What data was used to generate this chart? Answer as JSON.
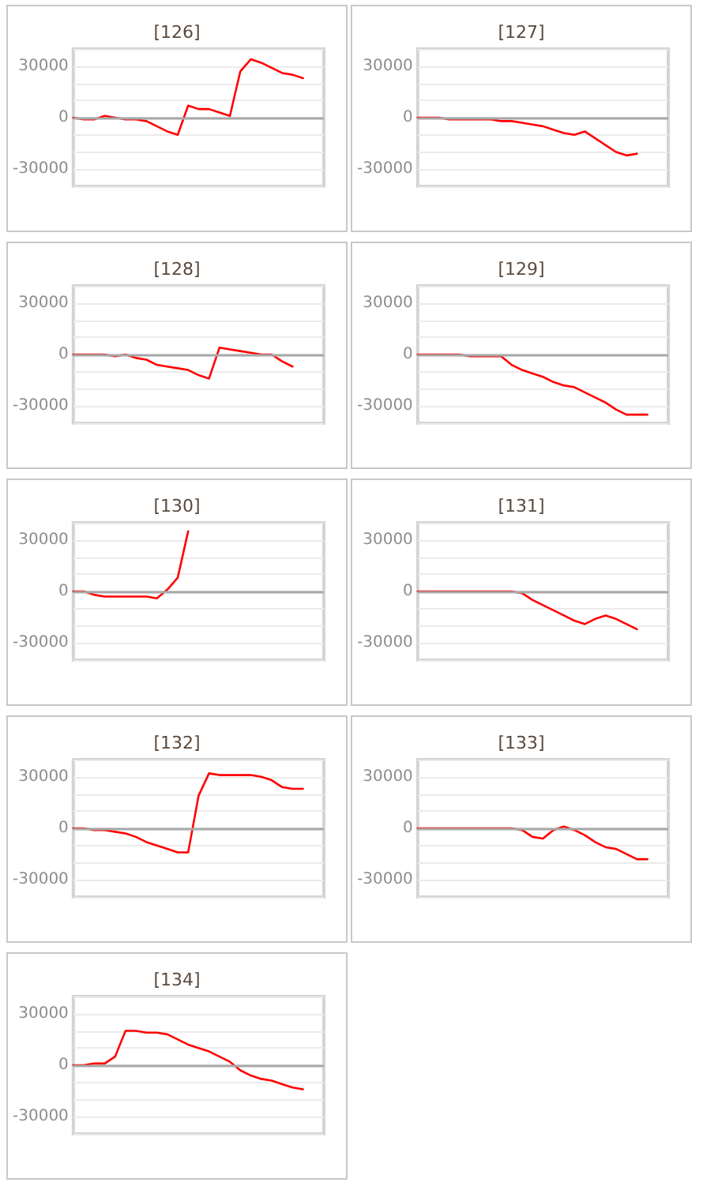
{
  "chart_data": [
    {
      "type": "line",
      "title": "[126]",
      "ref_lines": [
        {
          "axis": "y",
          "value": 0,
          "color": "#a8a8a8"
        }
      ],
      "categories": [
        null,
        null,
        null,
        null,
        null,
        null,
        null,
        null,
        null,
        null,
        null,
        null,
        null,
        null,
        null,
        null,
        null,
        null,
        null,
        null,
        null,
        null,
        null,
        null,
        null
      ],
      "series": [
        {
          "color": "#ff0000",
          "values": [
            0,
            -1000,
            -1000,
            1000,
            0,
            -1000,
            -1000,
            -2000,
            -5000,
            -8000,
            -10000,
            7000,
            5000,
            5000,
            3000,
            1000,
            27000,
            34000,
            32000,
            29000,
            26000,
            25000,
            23000,
            null,
            null
          ]
        }
      ],
      "ylim": [
        -40000,
        40000
      ],
      "yticks": [
        {
          "value": -30000,
          "label": "-30000"
        },
        {
          "value": -20000,
          "label": null
        },
        {
          "value": -10000,
          "label": null
        },
        {
          "value": 0,
          "label": "0"
        },
        {
          "value": 10000,
          "label": null
        },
        {
          "value": 20000,
          "label": null
        },
        {
          "value": 30000,
          "label": "30000"
        }
      ],
      "grid": "y",
      "tick_labels": "y",
      "line_style": "solid"
    },
    {
      "type": "line",
      "title": "[127]",
      "ref_lines": [
        {
          "axis": "y",
          "value": 0,
          "color": "#a8a8a8"
        }
      ],
      "categories": [
        null,
        null,
        null,
        null,
        null,
        null,
        null,
        null,
        null,
        null,
        null,
        null,
        null,
        null,
        null,
        null,
        null,
        null,
        null,
        null,
        null,
        null,
        null,
        null,
        null
      ],
      "series": [
        {
          "color": "#ff0000",
          "values": [
            0,
            0,
            0,
            -1000,
            -1000,
            -1000,
            -1000,
            -1000,
            -2000,
            -2000,
            -3000,
            -4000,
            -5000,
            -7000,
            -9000,
            -10000,
            -8000,
            -12000,
            -16000,
            -20000,
            -22000,
            -21000,
            null,
            null,
            null
          ]
        }
      ],
      "ylim": [
        -40000,
        40000
      ],
      "yticks": [
        {
          "value": -30000,
          "label": "-30000"
        },
        {
          "value": -20000,
          "label": null
        },
        {
          "value": -10000,
          "label": null
        },
        {
          "value": 0,
          "label": "0"
        },
        {
          "value": 10000,
          "label": null
        },
        {
          "value": 20000,
          "label": null
        },
        {
          "value": 30000,
          "label": "30000"
        }
      ],
      "grid": "y",
      "tick_labels": "y",
      "line_style": "solid"
    },
    {
      "type": "line",
      "title": "[128]",
      "ref_lines": [
        {
          "axis": "y",
          "value": 0,
          "color": "#a8a8a8"
        }
      ],
      "categories": [
        null,
        null,
        null,
        null,
        null,
        null,
        null,
        null,
        null,
        null,
        null,
        null,
        null,
        null,
        null,
        null,
        null,
        null,
        null,
        null,
        null,
        null,
        null,
        null,
        null
      ],
      "series": [
        {
          "color": "#ff0000",
          "values": [
            0,
            0,
            0,
            0,
            -1000,
            0,
            -2000,
            -3000,
            -6000,
            -7000,
            -8000,
            -9000,
            -12000,
            -14000,
            4000,
            3000,
            2000,
            1000,
            0,
            0,
            -4000,
            -7000,
            null,
            null,
            null
          ]
        }
      ],
      "ylim": [
        -40000,
        40000
      ],
      "yticks": [
        {
          "value": -30000,
          "label": "-30000"
        },
        {
          "value": -20000,
          "label": null
        },
        {
          "value": -10000,
          "label": null
        },
        {
          "value": 0,
          "label": "0"
        },
        {
          "value": 10000,
          "label": null
        },
        {
          "value": 20000,
          "label": null
        },
        {
          "value": 30000,
          "label": "30000"
        }
      ],
      "grid": "y",
      "tick_labels": "y",
      "line_style": "solid"
    },
    {
      "type": "line",
      "title": "[129]",
      "ref_lines": [
        {
          "axis": "y",
          "value": 0,
          "color": "#a8a8a8"
        }
      ],
      "categories": [
        null,
        null,
        null,
        null,
        null,
        null,
        null,
        null,
        null,
        null,
        null,
        null,
        null,
        null,
        null,
        null,
        null,
        null,
        null,
        null,
        null,
        null,
        null,
        null,
        null
      ],
      "series": [
        {
          "color": "#ff0000",
          "values": [
            0,
            0,
            0,
            0,
            0,
            -1000,
            -1000,
            -1000,
            -1000,
            -6000,
            -9000,
            -11000,
            -13000,
            -16000,
            -18000,
            -19000,
            -22000,
            -25000,
            -28000,
            -32000,
            -35000,
            -35000,
            -35000,
            null,
            null
          ]
        }
      ],
      "ylim": [
        -40000,
        40000
      ],
      "yticks": [
        {
          "value": -30000,
          "label": "-30000"
        },
        {
          "value": -20000,
          "label": null
        },
        {
          "value": -10000,
          "label": null
        },
        {
          "value": 0,
          "label": "0"
        },
        {
          "value": 10000,
          "label": null
        },
        {
          "value": 20000,
          "label": null
        },
        {
          "value": 30000,
          "label": "30000"
        }
      ],
      "grid": "y",
      "tick_labels": "y",
      "line_style": "solid"
    },
    {
      "type": "line",
      "title": "[130]",
      "ref_lines": [
        {
          "axis": "y",
          "value": 0,
          "color": "#a8a8a8"
        }
      ],
      "categories": [
        null,
        null,
        null,
        null,
        null,
        null,
        null,
        null,
        null,
        null,
        null,
        null,
        null,
        null,
        null,
        null,
        null,
        null,
        null,
        null,
        null,
        null,
        null,
        null,
        null
      ],
      "series": [
        {
          "color": "#ff0000",
          "values": [
            0,
            0,
            -2000,
            -3000,
            -3000,
            -3000,
            -3000,
            -3000,
            -4000,
            1000,
            8000,
            35000,
            null,
            null,
            null,
            null,
            null,
            null,
            null,
            null,
            null,
            null,
            null,
            null,
            null
          ]
        }
      ],
      "ylim": [
        -40000,
        40000
      ],
      "yticks": [
        {
          "value": -30000,
          "label": "-30000"
        },
        {
          "value": -20000,
          "label": null
        },
        {
          "value": -10000,
          "label": null
        },
        {
          "value": 0,
          "label": "0"
        },
        {
          "value": 10000,
          "label": null
        },
        {
          "value": 20000,
          "label": null
        },
        {
          "value": 30000,
          "label": "30000"
        }
      ],
      "grid": "y",
      "tick_labels": "y",
      "line_style": "solid"
    },
    {
      "type": "line",
      "title": "[131]",
      "ref_lines": [
        {
          "axis": "y",
          "value": 0,
          "color": "#a8a8a8"
        }
      ],
      "categories": [
        null,
        null,
        null,
        null,
        null,
        null,
        null,
        null,
        null,
        null,
        null,
        null,
        null,
        null,
        null,
        null,
        null,
        null,
        null,
        null,
        null,
        null,
        null,
        null,
        null
      ],
      "series": [
        {
          "color": "#ff0000",
          "values": [
            0,
            0,
            0,
            0,
            0,
            0,
            0,
            0,
            0,
            0,
            -1000,
            -5000,
            -8000,
            -11000,
            -14000,
            -17000,
            -19000,
            -16000,
            -14000,
            -16000,
            -19000,
            -22000,
            null,
            null,
            null
          ]
        }
      ],
      "ylim": [
        -40000,
        40000
      ],
      "yticks": [
        {
          "value": -30000,
          "label": "-30000"
        },
        {
          "value": -20000,
          "label": null
        },
        {
          "value": -10000,
          "label": null
        },
        {
          "value": 0,
          "label": "0"
        },
        {
          "value": 10000,
          "label": null
        },
        {
          "value": 20000,
          "label": null
        },
        {
          "value": 30000,
          "label": "30000"
        }
      ],
      "grid": "y",
      "tick_labels": "y",
      "line_style": "solid"
    },
    {
      "type": "line",
      "title": "[132]",
      "ref_lines": [
        {
          "axis": "y",
          "value": 0,
          "color": "#a8a8a8"
        }
      ],
      "categories": [
        null,
        null,
        null,
        null,
        null,
        null,
        null,
        null,
        null,
        null,
        null,
        null,
        null,
        null,
        null,
        null,
        null,
        null,
        null,
        null,
        null,
        null,
        null,
        null,
        null
      ],
      "series": [
        {
          "color": "#ff0000",
          "values": [
            0,
            0,
            -1000,
            -1000,
            -2000,
            -3000,
            -5000,
            -8000,
            -10000,
            -12000,
            -14000,
            -14000,
            19000,
            32000,
            31000,
            31000,
            31000,
            31000,
            30000,
            28000,
            24000,
            23000,
            23000,
            null,
            null
          ]
        }
      ],
      "ylim": [
        -40000,
        40000
      ],
      "yticks": [
        {
          "value": -30000,
          "label": "-30000"
        },
        {
          "value": -20000,
          "label": null
        },
        {
          "value": -10000,
          "label": null
        },
        {
          "value": 0,
          "label": "0"
        },
        {
          "value": 10000,
          "label": null
        },
        {
          "value": 20000,
          "label": null
        },
        {
          "value": 30000,
          "label": "30000"
        }
      ],
      "grid": "y",
      "tick_labels": "y",
      "line_style": "solid"
    },
    {
      "type": "line",
      "title": "[133]",
      "ref_lines": [
        {
          "axis": "y",
          "value": 0,
          "color": "#a8a8a8"
        }
      ],
      "categories": [
        null,
        null,
        null,
        null,
        null,
        null,
        null,
        null,
        null,
        null,
        null,
        null,
        null,
        null,
        null,
        null,
        null,
        null,
        null,
        null,
        null,
        null,
        null,
        null,
        null
      ],
      "series": [
        {
          "color": "#ff0000",
          "values": [
            0,
            0,
            0,
            0,
            0,
            0,
            0,
            0,
            0,
            0,
            -1000,
            -5000,
            -6000,
            -1000,
            1000,
            -1000,
            -4000,
            -8000,
            -11000,
            -12000,
            -15000,
            -18000,
            -18000,
            null,
            null
          ]
        }
      ],
      "ylim": [
        -40000,
        40000
      ],
      "yticks": [
        {
          "value": -30000,
          "label": "-30000"
        },
        {
          "value": -20000,
          "label": null
        },
        {
          "value": -10000,
          "label": null
        },
        {
          "value": 0,
          "label": "0"
        },
        {
          "value": 10000,
          "label": null
        },
        {
          "value": 20000,
          "label": null
        },
        {
          "value": 30000,
          "label": "30000"
        }
      ],
      "grid": "y",
      "tick_labels": "y",
      "line_style": "solid"
    },
    {
      "type": "line",
      "title": "[134]",
      "ref_lines": [
        {
          "axis": "y",
          "value": 0,
          "color": "#a8a8a8"
        }
      ],
      "categories": [
        null,
        null,
        null,
        null,
        null,
        null,
        null,
        null,
        null,
        null,
        null,
        null,
        null,
        null,
        null,
        null,
        null,
        null,
        null,
        null,
        null,
        null,
        null,
        null,
        null
      ],
      "series": [
        {
          "color": "#ff0000",
          "values": [
            0,
            0,
            1000,
            1000,
            5000,
            20000,
            20000,
            19000,
            19000,
            18000,
            15000,
            12000,
            10000,
            8000,
            5000,
            2000,
            -3000,
            -6000,
            -8000,
            -9000,
            -11000,
            -13000,
            -14000,
            null,
            null
          ]
        }
      ],
      "ylim": [
        -40000,
        40000
      ],
      "yticks": [
        {
          "value": -30000,
          "label": "-30000"
        },
        {
          "value": -20000,
          "label": null
        },
        {
          "value": -10000,
          "label": null
        },
        {
          "value": 0,
          "label": "0"
        },
        {
          "value": 10000,
          "label": null
        },
        {
          "value": 20000,
          "label": null
        },
        {
          "value": 30000,
          "label": "30000"
        }
      ],
      "grid": "y",
      "tick_labels": "y",
      "line_style": "solid"
    }
  ]
}
